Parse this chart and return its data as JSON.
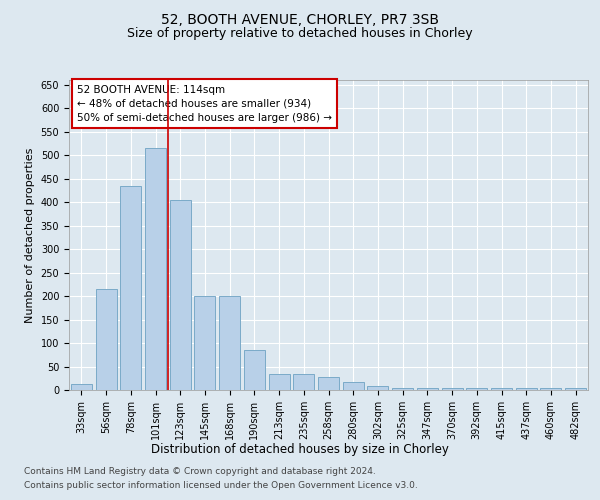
{
  "title1": "52, BOOTH AVENUE, CHORLEY, PR7 3SB",
  "title2": "Size of property relative to detached houses in Chorley",
  "xlabel": "Distribution of detached houses by size in Chorley",
  "ylabel": "Number of detached properties",
  "categories": [
    "33sqm",
    "56sqm",
    "78sqm",
    "101sqm",
    "123sqm",
    "145sqm",
    "168sqm",
    "190sqm",
    "213sqm",
    "235sqm",
    "258sqm",
    "280sqm",
    "302sqm",
    "325sqm",
    "347sqm",
    "370sqm",
    "392sqm",
    "415sqm",
    "437sqm",
    "460sqm",
    "482sqm"
  ],
  "values": [
    12,
    215,
    435,
    515,
    405,
    200,
    200,
    85,
    35,
    35,
    28,
    18,
    8,
    5,
    5,
    5,
    5,
    5,
    5,
    5,
    5
  ],
  "bar_color": "#b8d0e8",
  "bar_edge_color": "#7aaac8",
  "ref_line_x": 3.5,
  "ref_line_color": "#cc0000",
  "annotation_text": "52 BOOTH AVENUE: 114sqm\n← 48% of detached houses are smaller (934)\n50% of semi-detached houses are larger (986) →",
  "annotation_box_facecolor": "#ffffff",
  "annotation_box_edgecolor": "#cc0000",
  "ylim": [
    0,
    660
  ],
  "yticks": [
    0,
    50,
    100,
    150,
    200,
    250,
    300,
    350,
    400,
    450,
    500,
    550,
    600,
    650
  ],
  "bg_color": "#dde8f0",
  "plot_bg": "#dde8f0",
  "grid_color": "#ffffff",
  "footer1": "Contains HM Land Registry data © Crown copyright and database right 2024.",
  "footer2": "Contains public sector information licensed under the Open Government Licence v3.0.",
  "title1_fontsize": 10,
  "title2_fontsize": 9,
  "xlabel_fontsize": 8.5,
  "ylabel_fontsize": 8,
  "tick_fontsize": 7,
  "annot_fontsize": 7.5,
  "footer_fontsize": 6.5
}
